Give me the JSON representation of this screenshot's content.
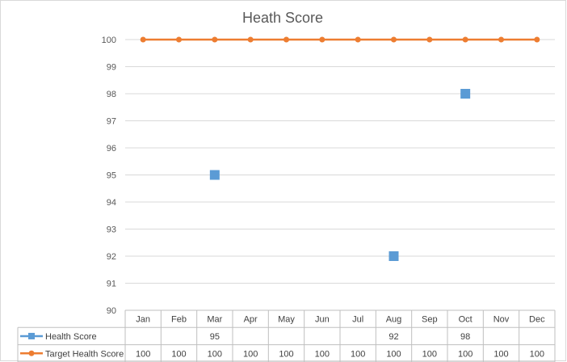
{
  "chart_data": {
    "type": "line",
    "title": "Heath Score",
    "categories": [
      "Jan",
      "Feb",
      "Mar",
      "Apr",
      "May",
      "Jun",
      "Jul",
      "Aug",
      "Sep",
      "Oct",
      "Nov",
      "Dec"
    ],
    "series": [
      {
        "name": "Health Score",
        "values": [
          null,
          null,
          95,
          null,
          null,
          null,
          null,
          92,
          null,
          98,
          null,
          null
        ],
        "color": "#5b9bd5",
        "marker": "square",
        "line": false
      },
      {
        "name": "Target Health Score",
        "values": [
          100,
          100,
          100,
          100,
          100,
          100,
          100,
          100,
          100,
          100,
          100,
          100
        ],
        "color": "#ed7d31",
        "marker": "circle",
        "line": true
      }
    ],
    "ylim": [
      90,
      100
    ],
    "yticks": [
      90,
      91,
      92,
      93,
      94,
      95,
      96,
      97,
      98,
      99,
      100
    ],
    "grid": true,
    "legend": "data-table-left"
  }
}
